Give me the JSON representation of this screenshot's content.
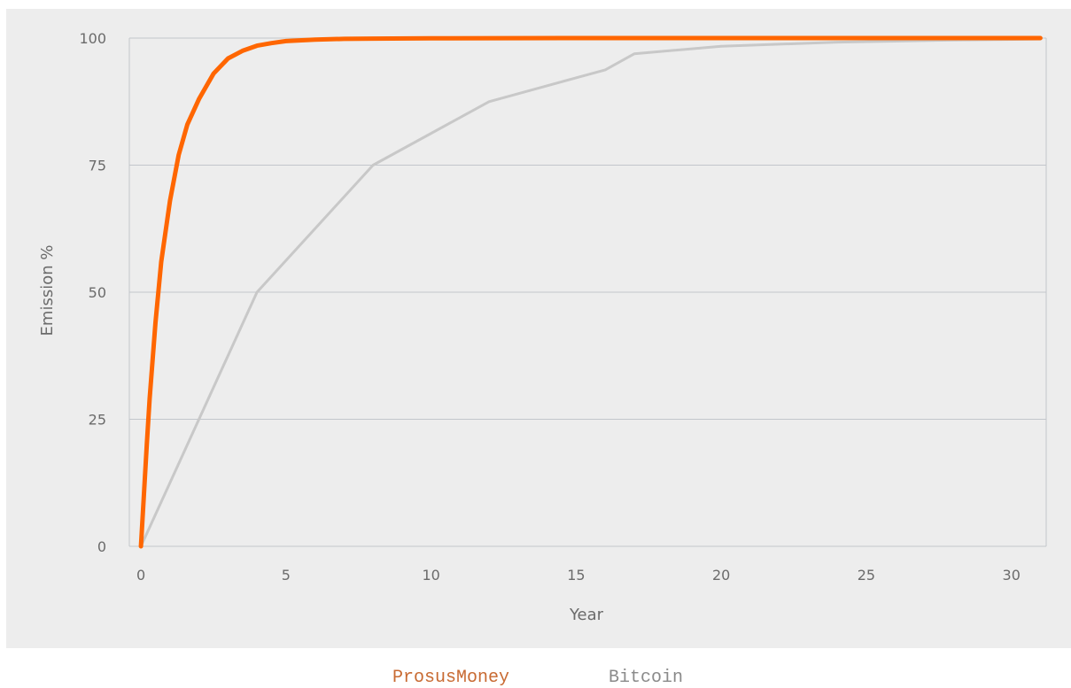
{
  "chart_data": {
    "type": "line",
    "xlabel": "Year",
    "ylabel": "Emission %",
    "xlim": [
      -0.4,
      31.2
    ],
    "ylim": [
      0,
      100
    ],
    "xticks": [
      0,
      5,
      10,
      15,
      20,
      25,
      30
    ],
    "yticks": [
      0,
      25,
      50,
      75,
      100
    ],
    "grid": "horizontal",
    "legend_position": "bottom-center",
    "series": [
      {
        "name": "ProsusMoney",
        "color": "#ff6600",
        "x": [
          0,
          0.1,
          0.2,
          0.3,
          0.5,
          0.7,
          1.0,
          1.3,
          1.6,
          2.0,
          2.5,
          3.0,
          3.5,
          4.0,
          4.5,
          5.0,
          6.0,
          7.0,
          8.0,
          10,
          15,
          20,
          25,
          31
        ],
        "y": [
          0,
          10,
          20,
          29,
          44,
          56,
          68,
          77,
          83,
          88,
          93,
          96,
          97.5,
          98.5,
          99,
          99.4,
          99.7,
          99.85,
          99.9,
          99.95,
          100,
          100,
          100,
          100
        ]
      },
      {
        "name": "Bitcoin",
        "color": "#c8c8c8",
        "x": [
          0,
          4,
          8,
          12,
          16,
          17,
          20,
          24,
          28,
          31
        ],
        "y": [
          0,
          50,
          75,
          87.5,
          93.75,
          96.9,
          98.4,
          99.2,
          99.6,
          99.8
        ]
      }
    ]
  }
}
